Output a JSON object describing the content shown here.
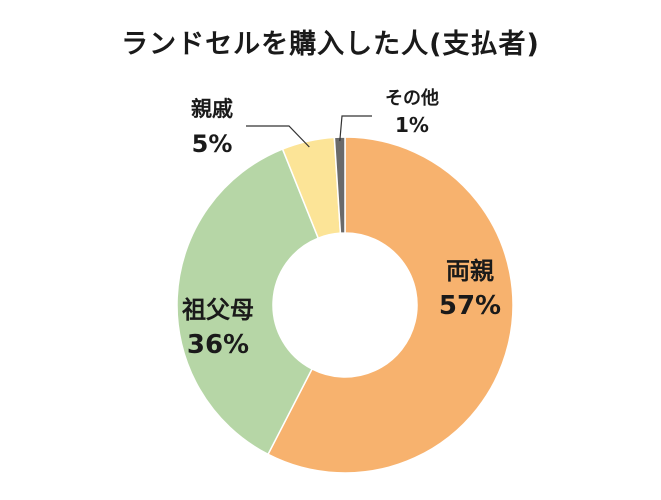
{
  "chart_data": {
    "type": "pie",
    "donut": true,
    "title": "ランドセルを購入した人(支払者)",
    "slices": [
      {
        "label": "両親",
        "value": 57,
        "value_label": "57%",
        "color": "#f7b26e"
      },
      {
        "label": "祖父母",
        "value": 36,
        "value_label": "36%",
        "color": "#b6d6a6"
      },
      {
        "label": "親戚",
        "value": 5,
        "value_label": "5%",
        "color": "#fce497"
      },
      {
        "label": "その他",
        "value": 1,
        "value_label": "1%",
        "color": "#6a6a6a"
      }
    ],
    "legend": "none"
  }
}
